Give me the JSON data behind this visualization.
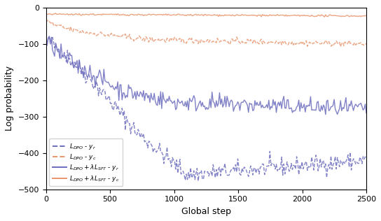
{
  "title": "",
  "xlabel": "Global step",
  "ylabel": "Log probability",
  "xlim": [
    0,
    2500
  ],
  "ylim": [
    -500,
    0
  ],
  "yticks": [
    0,
    -100,
    -200,
    -300,
    -400,
    -500
  ],
  "xticks": [
    0,
    500,
    1000,
    1500,
    2000,
    2500
  ],
  "color_blue": "#6b6bbd",
  "color_orange": "#e8956d",
  "seed": 42,
  "figsize": [
    5.44,
    3.16
  ],
  "dpi": 100
}
